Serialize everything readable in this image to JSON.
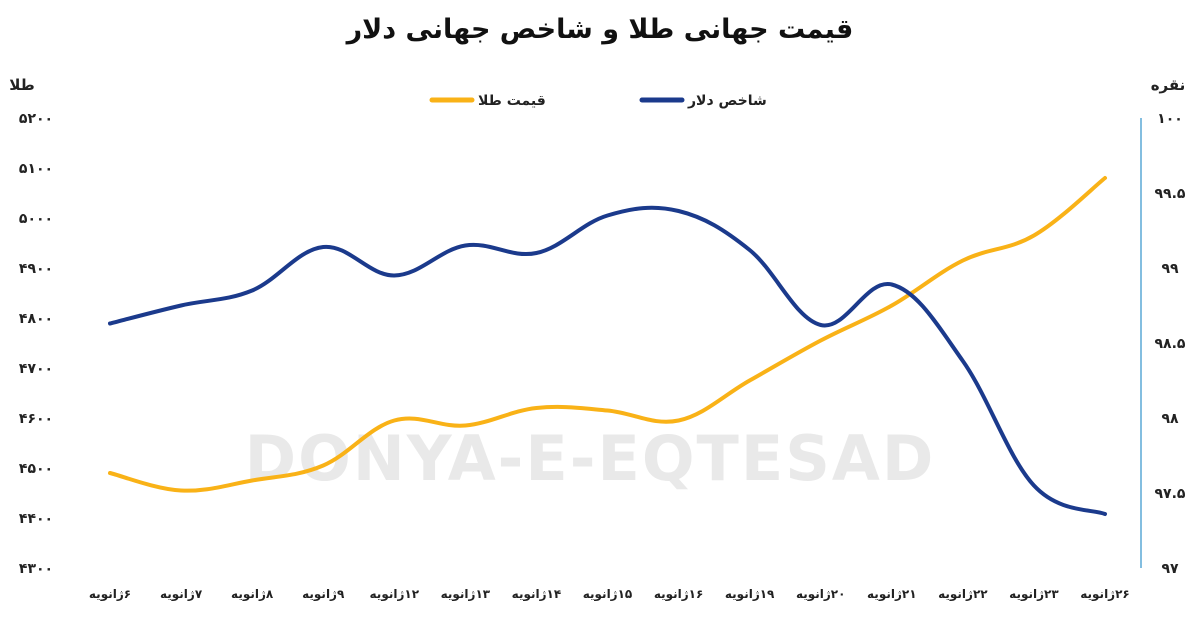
{
  "chart_data": {
    "type": "line",
    "title": "قیمت جهانی طلا و شاخص جهانی دلار",
    "watermark": "DONYA-E-EQTESAD",
    "categories": [
      "۶ژانویه",
      "۷ژانویه",
      "۸ژانویه",
      "۹ژانویه",
      "۱۲ژانویه",
      "۱۳ژانویه",
      "۱۴ژانویه",
      "۱۵ژانویه",
      "۱۶ژانویه",
      "۱۹ژانویه",
      "۲۰ژانویه",
      "۲۱ژانویه",
      "۲۲ژانویه",
      "۲۳ژانویه",
      "۲۶ژانویه"
    ],
    "left_axis": {
      "label": "طلا",
      "range": [
        4300,
        5200
      ],
      "ticks": [
        "۴۳۰۰",
        "۴۴۰۰",
        "۴۵۰۰",
        "۴۶۰۰",
        "۴۷۰۰",
        "۴۸۰۰",
        "۴۹۰۰",
        "۵۰۰۰",
        "۵۱۰۰",
        "۵۲۰۰"
      ]
    },
    "right_axis": {
      "label": "نقره",
      "range": [
        97,
        100
      ],
      "ticks": [
        "۹۷",
        "۹۷.۵",
        "۹۸",
        "۹۸.۵",
        "۹۹",
        "۹۹.۵",
        "۱۰۰"
      ]
    },
    "series": [
      {
        "name": "قیمت طلا",
        "axis": "left",
        "color": "#f9b217",
        "values": [
          4490,
          4455,
          4475,
          4505,
          4595,
          4585,
          4620,
          4615,
          4595,
          4675,
          4755,
          4825,
          4915,
          4965,
          5080
        ]
      },
      {
        "name": "شاخص دلار",
        "axis": "right",
        "color": "#1b3a8c",
        "values": [
          98.63,
          98.75,
          98.85,
          99.14,
          98.95,
          99.15,
          99.1,
          99.35,
          99.38,
          99.12,
          98.62,
          98.89,
          98.38,
          97.55,
          97.36
        ]
      }
    ],
    "legend_position": "top-center",
    "grid": false
  }
}
